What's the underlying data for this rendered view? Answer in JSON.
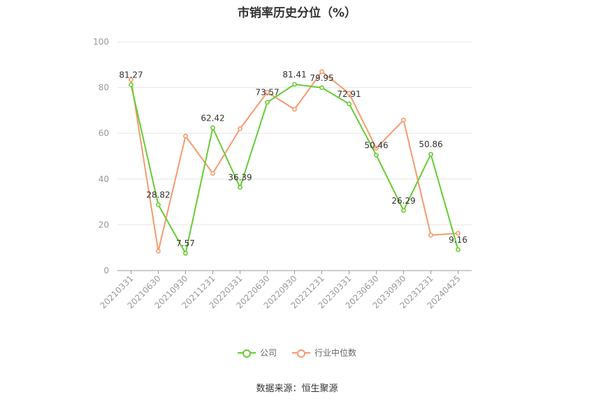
{
  "title": "市销率历史分位（%）",
  "source": "数据来源：恒生聚源",
  "colors": {
    "company": "#66cc33",
    "industry": "#f59a6e",
    "grid": "#e6e6e6",
    "axis": "#999999"
  },
  "chart_data": {
    "type": "line",
    "title": "市销率历史分位（%）",
    "ylim": [
      0,
      100
    ],
    "yticks": [
      0,
      20,
      40,
      60,
      80,
      100
    ],
    "categories": [
      "20210331",
      "20210630",
      "20210930",
      "20211231",
      "20220331",
      "20220630",
      "20220930",
      "20221231",
      "20230331",
      "20230630",
      "20230930",
      "20231231",
      "20240425"
    ],
    "legend_position": "bottom",
    "grid": true,
    "series": [
      {
        "name": "公司",
        "values": [
          81.27,
          28.82,
          7.57,
          62.42,
          36.39,
          73.57,
          81.41,
          79.95,
          72.91,
          50.46,
          26.29,
          50.86,
          9.16
        ],
        "labels": [
          "81.27",
          "28.82",
          "7.57",
          "62.42",
          "36.39",
          "73.57",
          "81.41",
          "79.95",
          "72.91",
          "50.46",
          "26.29",
          "50.86",
          "9.16"
        ]
      },
      {
        "name": "行业中位数",
        "values": [
          83.5,
          8.5,
          58.8,
          42.5,
          62.0,
          78.0,
          70.5,
          87.0,
          77.5,
          53.5,
          65.8,
          15.5,
          16.3
        ]
      }
    ]
  }
}
